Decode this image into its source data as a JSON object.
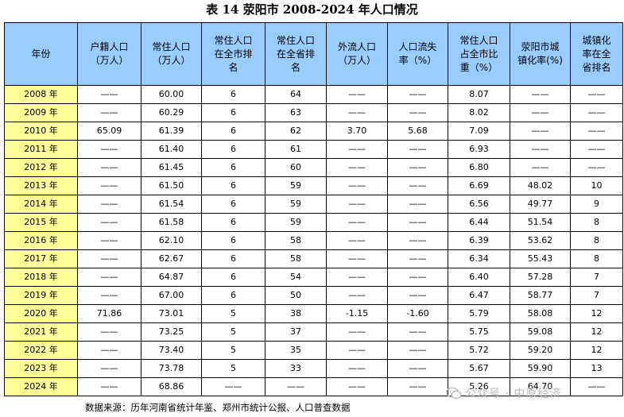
{
  "title": "表 14 荥阳市 2008-2024 年人口情况",
  "columns": [
    "年份",
    "户籍人口\n（万人）",
    "常住人口\n（万人）",
    "常住人口\n在全市排\n名",
    "常住人口\n在全省排\n名",
    "外流人口\n（万人）",
    "人口流失\n率（%）",
    "常住人口\n占全市比\n重（%）",
    "荥阳市城\n镇化率(%)",
    "城镇化\n率在全\n省排名"
  ],
  "rows": [
    [
      "2008 年",
      "——",
      "60.00",
      "6",
      "64",
      "——",
      "——",
      "8.07",
      "——",
      "——"
    ],
    [
      "2009 年",
      "——",
      "60.29",
      "6",
      "63",
      "——",
      "——",
      "8.02",
      "——",
      "——"
    ],
    [
      "2010 年",
      "65.09",
      "61.39",
      "6",
      "62",
      "3.70",
      "5.68",
      "7.09",
      "——",
      "——"
    ],
    [
      "2011 年",
      "——",
      "61.40",
      "6",
      "61",
      "——",
      "——",
      "6.93",
      "——",
      "——"
    ],
    [
      "2012 年",
      "——",
      "61.45",
      "6",
      "60",
      "——",
      "——",
      "6.80",
      "——",
      "——"
    ],
    [
      "2013 年",
      "——",
      "61.50",
      "6",
      "59",
      "——",
      "——",
      "6.69",
      "48.02",
      "10"
    ],
    [
      "2014 年",
      "——",
      "61.54",
      "6",
      "59",
      "——",
      "——",
      "6.56",
      "49.77",
      "9"
    ],
    [
      "2015 年",
      "——",
      "61.58",
      "6",
      "59",
      "——",
      "——",
      "6.44",
      "51.54",
      "8"
    ],
    [
      "2016 年",
      "——",
      "62.10",
      "6",
      "58",
      "——",
      "——",
      "6.39",
      "53.62",
      "8"
    ],
    [
      "2017 年",
      "——",
      "62.67",
      "6",
      "58",
      "——",
      "——",
      "6.34",
      "55.43",
      "8"
    ],
    [
      "2018 年",
      "——",
      "64.87",
      "6",
      "54",
      "——",
      "——",
      "6.40",
      "57.28",
      "7"
    ],
    [
      "2019 年",
      "——",
      "67.00",
      "6",
      "50",
      "——",
      "——",
      "6.47",
      "58.77",
      "7"
    ],
    [
      "2020 年",
      "71.86",
      "73.01",
      "5",
      "38",
      "-1.15",
      "-1.60",
      "5.79",
      "58.08",
      "12"
    ],
    [
      "2021 年",
      "——",
      "73.25",
      "5",
      "37",
      "——",
      "——",
      "5.75",
      "59.08",
      "12"
    ],
    [
      "2022 年",
      "——",
      "73.40",
      "5",
      "35",
      "——",
      "——",
      "5.72",
      "59.20",
      "12"
    ],
    [
      "2023 年",
      "——",
      "73.78",
      "5",
      "33",
      "——",
      "——",
      "5.67",
      "59.90",
      "13"
    ],
    [
      "2024 年",
      "——",
      "68.86",
      "——",
      "——",
      "——",
      "——",
      "5.26",
      "64.70",
      "——"
    ]
  ],
  "source": "数据来源：历年河南省统计年鉴、郑州市统计公报、人口普查数据",
  "watermark": "公众号 · 中原经济",
  "colors": {
    "header_bg": "#99ccff",
    "year_bg": "#ffff99",
    "watermark": "#b8b8b8"
  },
  "icons": {
    "watermark": "wechat-icon"
  }
}
